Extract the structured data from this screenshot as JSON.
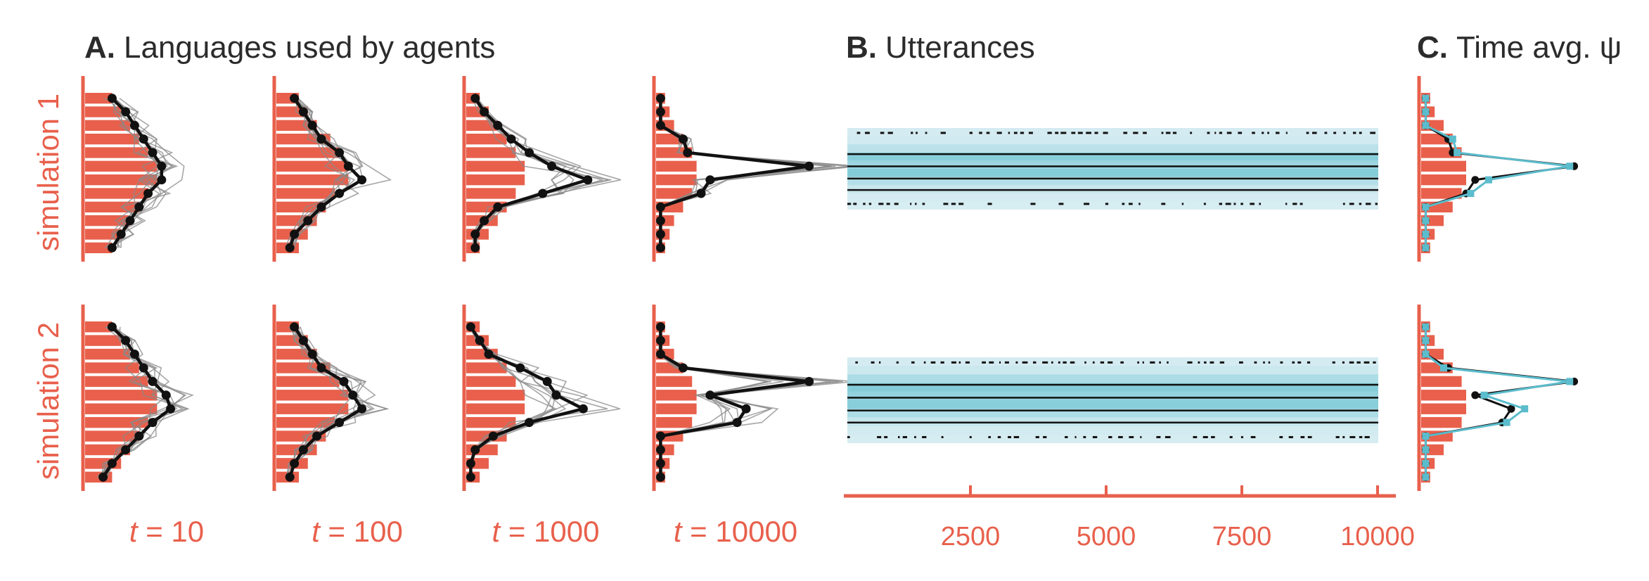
{
  "colors": {
    "accent": "#e8604c",
    "black": "#111111",
    "grey": "#8a8a8a",
    "teal": "#5bbccc",
    "teal_light": "#d9eef3"
  },
  "titles": {
    "a_letter": "A.",
    "a_text": "Languages used by agents",
    "b_letter": "B.",
    "b_text": "Utterances",
    "c_letter": "C.",
    "c_text": "Time avg. ψ"
  },
  "row_labels": [
    "simulation 1",
    "simulation 2"
  ],
  "col_labels": [
    {
      "t": "t",
      "rest": " = 10"
    },
    {
      "t": "t",
      "rest": " = 100"
    },
    {
      "t": "t",
      "rest": " = 1000"
    },
    {
      "t": "t",
      "rest": " = 10000"
    }
  ],
  "b_xticks": [
    "2500",
    "5000",
    "7500",
    "10000"
  ],
  "chart_data": [
    {
      "panel": "A",
      "type": "bar",
      "orientation": "horizontal",
      "n_categories": 12,
      "rows": [
        {
          "name": "simulation 1",
          "columns": [
            {
              "t": 10,
              "bars": [
                0.06,
                0.08,
                0.1,
                0.12,
                0.14,
                0.16,
                0.16,
                0.14,
                0.12,
                0.1,
                0.08,
                0.06
              ],
              "line": [
                0.06,
                0.09,
                0.11,
                0.13,
                0.15,
                0.17,
                0.17,
                0.14,
                0.12,
                0.1,
                0.08,
                0.06
              ]
            },
            {
              "t": 100,
              "bars": [
                0.05,
                0.07,
                0.09,
                0.12,
                0.14,
                0.16,
                0.16,
                0.13,
                0.11,
                0.09,
                0.07,
                0.05
              ],
              "line": [
                0.04,
                0.06,
                0.08,
                0.1,
                0.14,
                0.16,
                0.19,
                0.14,
                0.1,
                0.07,
                0.04,
                0.03
              ]
            },
            {
              "t": 1000,
              "bars": [
                0.03,
                0.05,
                0.07,
                0.09,
                0.11,
                0.13,
                0.13,
                0.11,
                0.09,
                0.07,
                0.05,
                0.03
              ],
              "line": [
                0.02,
                0.04,
                0.07,
                0.1,
                0.14,
                0.19,
                0.27,
                0.17,
                0.07,
                0.04,
                0.02,
                0.02
              ]
            },
            {
              "t": 10000,
              "bars": [
                0.02,
                0.03,
                0.04,
                0.06,
                0.08,
                0.09,
                0.09,
                0.08,
                0.06,
                0.04,
                0.03,
                0.02
              ],
              "line": [
                0.01,
                0.01,
                0.01,
                0.06,
                0.07,
                0.34,
                0.12,
                0.1,
                0.01,
                0.01,
                0.01,
                0.01
              ]
            }
          ]
        },
        {
          "name": "simulation 2",
          "columns": [
            {
              "t": 10,
              "bars": [
                0.06,
                0.08,
                0.1,
                0.12,
                0.14,
                0.16,
                0.16,
                0.14,
                0.12,
                0.1,
                0.08,
                0.06
              ],
              "line": [
                0.06,
                0.09,
                0.11,
                0.13,
                0.15,
                0.18,
                0.19,
                0.15,
                0.12,
                0.09,
                0.06,
                0.04
              ]
            },
            {
              "t": 100,
              "bars": [
                0.05,
                0.07,
                0.09,
                0.12,
                0.14,
                0.16,
                0.16,
                0.13,
                0.11,
                0.09,
                0.07,
                0.05
              ],
              "line": [
                0.04,
                0.06,
                0.08,
                0.1,
                0.15,
                0.17,
                0.19,
                0.14,
                0.09,
                0.06,
                0.04,
                0.03
              ]
            },
            {
              "t": 1000,
              "bars": [
                0.03,
                0.05,
                0.07,
                0.09,
                0.11,
                0.13,
                0.13,
                0.11,
                0.09,
                0.07,
                0.05,
                0.03
              ],
              "line": [
                0.01,
                0.03,
                0.05,
                0.12,
                0.18,
                0.2,
                0.26,
                0.14,
                0.06,
                0.02,
                0.01,
                0.01
              ]
            },
            {
              "t": 10000,
              "bars": [
                0.02,
                0.03,
                0.04,
                0.06,
                0.08,
                0.09,
                0.09,
                0.08,
                0.06,
                0.04,
                0.03,
                0.02
              ],
              "line": [
                0.01,
                0.01,
                0.01,
                0.06,
                0.34,
                0.12,
                0.2,
                0.18,
                0.01,
                0.01,
                0.01,
                0.01
              ]
            }
          ]
        }
      ]
    },
    {
      "panel": "B",
      "type": "heatmap",
      "title": "Utterances",
      "xlim": [
        0,
        10000
      ],
      "xticks": [
        2500,
        5000,
        7500,
        10000
      ],
      "rows": [
        {
          "name": "simulation 1",
          "intensity": [
            0.05,
            0.1,
            0.3,
            0.8,
            0.6,
            0.85,
            0.35,
            0.15,
            0.05,
            0.03
          ]
        },
        {
          "name": "simulation 2",
          "intensity": [
            0.05,
            0.12,
            0.45,
            0.85,
            0.7,
            0.8,
            0.45,
            0.2,
            0.08,
            0.04
          ]
        }
      ]
    },
    {
      "panel": "C",
      "type": "bar",
      "orientation": "horizontal",
      "title": "Time avg. ψ",
      "rows": [
        {
          "name": "simulation 1",
          "bars": [
            0.02,
            0.03,
            0.05,
            0.07,
            0.09,
            0.1,
            0.1,
            0.09,
            0.07,
            0.05,
            0.03,
            0.02
          ],
          "black": [
            0.01,
            0.01,
            0.01,
            0.06,
            0.07,
            0.34,
            0.12,
            0.1,
            0.01,
            0.01,
            0.01,
            0.01
          ],
          "teal": [
            0.01,
            0.01,
            0.01,
            0.07,
            0.08,
            0.33,
            0.15,
            0.11,
            0.01,
            0.01,
            0.01,
            0.01
          ]
        },
        {
          "name": "simulation 2",
          "bars": [
            0.02,
            0.03,
            0.05,
            0.07,
            0.09,
            0.1,
            0.1,
            0.09,
            0.07,
            0.05,
            0.03,
            0.02
          ],
          "black": [
            0.01,
            0.01,
            0.01,
            0.06,
            0.34,
            0.12,
            0.2,
            0.18,
            0.01,
            0.01,
            0.01,
            0.01
          ],
          "teal": [
            0.01,
            0.01,
            0.01,
            0.05,
            0.33,
            0.14,
            0.23,
            0.19,
            0.01,
            0.01,
            0.01,
            0.01
          ]
        }
      ]
    }
  ]
}
